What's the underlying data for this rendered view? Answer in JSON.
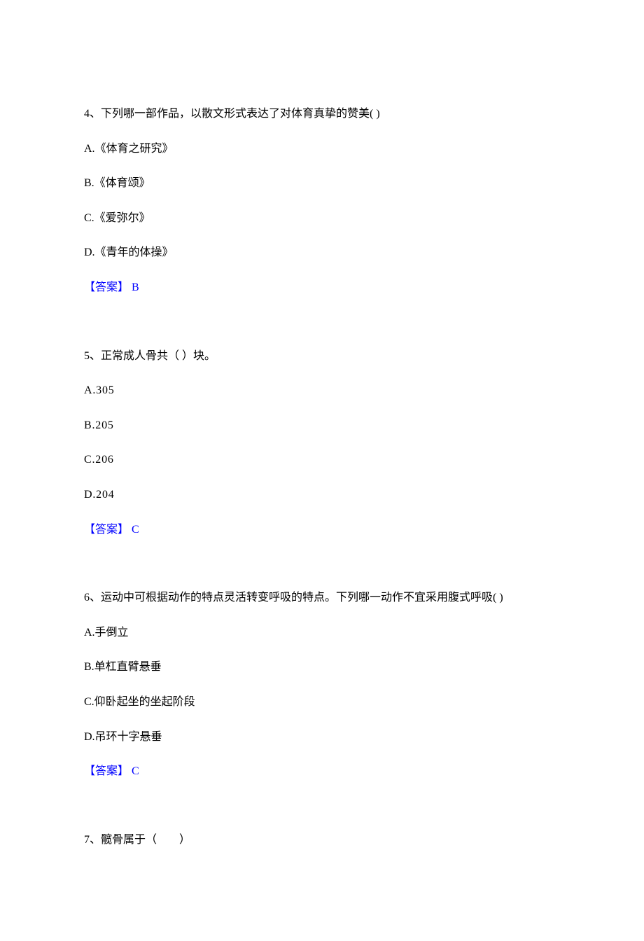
{
  "page": {
    "background_color": "#ffffff",
    "text_color": "#000000",
    "answer_color": "#0000ff",
    "font_family": "SimSun",
    "base_fontsize": 16
  },
  "questions": [
    {
      "number": "4",
      "stem": "4、下列哪一部作品，以散文形式表达了对体育真挚的赞美(  )",
      "options": {
        "A": "A.《体育之研究》",
        "B": "B.《体育颂》",
        "C": "C.《爱弥尔》",
        "D": "D.《青年的体操》"
      },
      "answer_label": "【答案】 ",
      "answer_value": "B"
    },
    {
      "number": "5",
      "stem": "5、正常成人骨共（ ）块。",
      "options": {
        "A": "A.305",
        "B": "B.205",
        "C": "C.206",
        "D": "D.204"
      },
      "answer_label": "【答案】 ",
      "answer_value": "C"
    },
    {
      "number": "6",
      "stem": "6、运动中可根据动作的特点灵活转变呼吸的特点。下列哪一动作不宜采用腹式呼吸(  )",
      "options": {
        "A": "A.手倒立",
        "B": "B.单杠直臂悬垂",
        "C": "C.仰卧起坐的坐起阶段",
        "D": "D.吊环十字悬垂"
      },
      "answer_label": "【答案】 ",
      "answer_value": "C"
    },
    {
      "number": "7",
      "stem": "7、髋骨属于（　　）"
    }
  ]
}
